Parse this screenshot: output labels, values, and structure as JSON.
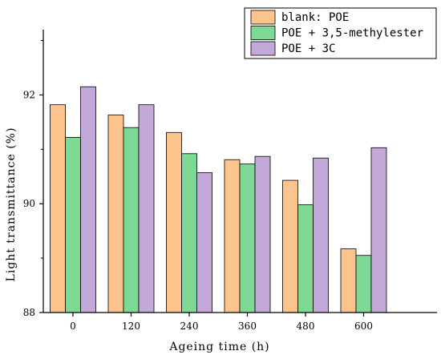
{
  "chart_data": {
    "type": "bar",
    "xlabel": "Ageing time (h)",
    "ylabel": "Light transmittance (%)",
    "categories": [
      "0",
      "120",
      "240",
      "360",
      "480",
      "600"
    ],
    "ylim": [
      88,
      93.2
    ],
    "yticks": [
      88,
      90,
      92
    ],
    "grid": false,
    "legend_position": "top-right",
    "series": [
      {
        "name": "blank: POE",
        "color": "#FDC48E",
        "values": [
          91.82,
          91.63,
          91.31,
          90.81,
          90.43,
          89.17
        ]
      },
      {
        "name": "POE + 3,5-methylester",
        "color": "#7ED995",
        "values": [
          91.22,
          91.4,
          90.92,
          90.73,
          89.98,
          89.05
        ]
      },
      {
        "name": "POE + 3C",
        "color": "#C3A9DA",
        "values": [
          92.15,
          91.82,
          90.57,
          90.87,
          90.84,
          91.03
        ]
      }
    ]
  }
}
